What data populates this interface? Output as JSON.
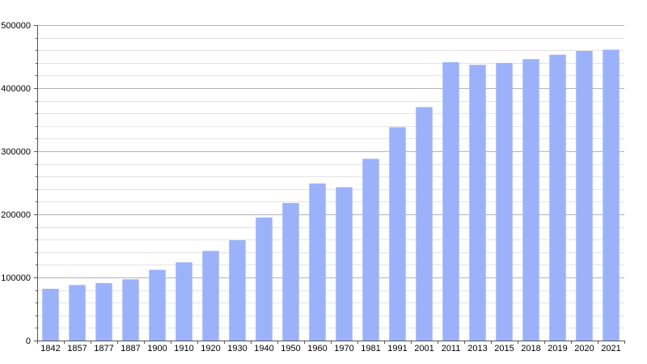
{
  "chart_data": {
    "type": "bar",
    "categories": [
      "1842",
      "1857",
      "1877",
      "1887",
      "1900",
      "1910",
      "1920",
      "1930",
      "1940",
      "1950",
      "1960",
      "1970",
      "1981",
      "1991",
      "2001",
      "2011",
      "2013",
      "2015",
      "2018",
      "2019",
      "2020",
      "2021"
    ],
    "values": [
      82000,
      88000,
      91000,
      97000,
      112000,
      124000,
      142000,
      159000,
      195000,
      218000,
      249000,
      243000,
      288000,
      338000,
      370000,
      441000,
      437000,
      440000,
      446000,
      453000,
      459000,
      461000
    ],
    "ylim": [
      0,
      500000
    ],
    "y_ticks": [
      "0",
      "100000",
      "200000",
      "300000",
      "400000",
      "500000"
    ],
    "grid": true,
    "title": "",
    "xlabel": "",
    "ylabel": "",
    "colors": {
      "bar": "#9bb2fb",
      "major_grid": "#b4b4b4",
      "minor_grid": "#e3e3e3",
      "axis": "#555555"
    }
  }
}
